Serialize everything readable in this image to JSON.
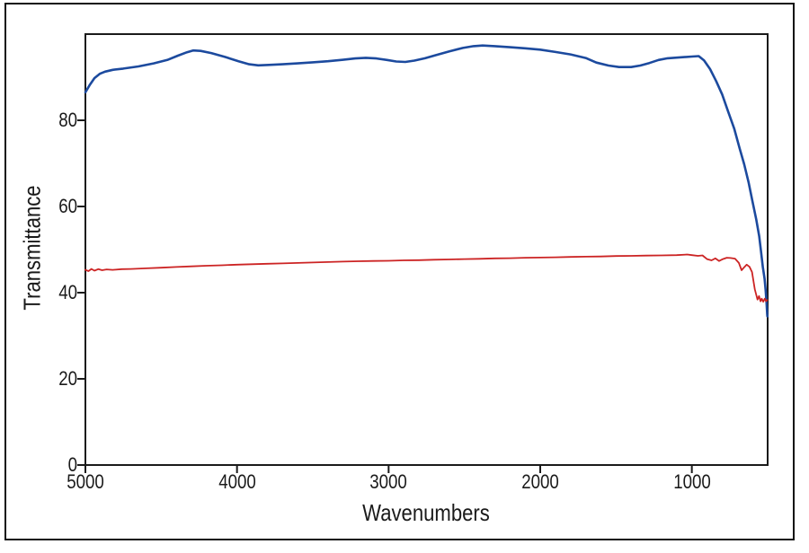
{
  "figure": {
    "background_color": "#ffffff",
    "border_color": "#101010",
    "axis_color": "#1a1a1a",
    "text_color": "#1a1a1a"
  },
  "chart_data": {
    "type": "line",
    "title": "",
    "xlabel": "Wavenumbers",
    "ylabel": "Transmittance",
    "grid": false,
    "legend": null,
    "x_axis": {
      "left": 5000,
      "right": 500,
      "reversed": true,
      "ticks": [
        5000,
        4000,
        3000,
        2000,
        1000
      ]
    },
    "y_axis": {
      "min": 0,
      "max": 100,
      "ticks": [
        0,
        20,
        40,
        60,
        80
      ]
    },
    "series": [
      {
        "name": "upper-spectrum-blue",
        "color": "#1c4a9e",
        "width": 2.6,
        "points": [
          [
            5000,
            86.5
          ],
          [
            4970,
            88.3
          ],
          [
            4940,
            89.8
          ],
          [
            4905,
            90.8
          ],
          [
            4870,
            91.3
          ],
          [
            4820,
            91.7
          ],
          [
            4750,
            92.0
          ],
          [
            4650,
            92.5
          ],
          [
            4550,
            93.2
          ],
          [
            4460,
            94.0
          ],
          [
            4390,
            95.0
          ],
          [
            4330,
            95.8
          ],
          [
            4290,
            96.2
          ],
          [
            4240,
            96.1
          ],
          [
            4170,
            95.6
          ],
          [
            4080,
            94.7
          ],
          [
            3990,
            93.7
          ],
          [
            3920,
            93.0
          ],
          [
            3860,
            92.75
          ],
          [
            3790,
            92.85
          ],
          [
            3700,
            93.0
          ],
          [
            3600,
            93.2
          ],
          [
            3500,
            93.45
          ],
          [
            3400,
            93.7
          ],
          [
            3300,
            94.05
          ],
          [
            3220,
            94.35
          ],
          [
            3150,
            94.5
          ],
          [
            3080,
            94.35
          ],
          [
            3010,
            94.0
          ],
          [
            2950,
            93.65
          ],
          [
            2890,
            93.55
          ],
          [
            2830,
            93.85
          ],
          [
            2760,
            94.4
          ],
          [
            2690,
            95.1
          ],
          [
            2600,
            96.0
          ],
          [
            2510,
            96.8
          ],
          [
            2440,
            97.2
          ],
          [
            2380,
            97.35
          ],
          [
            2300,
            97.2
          ],
          [
            2200,
            96.95
          ],
          [
            2100,
            96.7
          ],
          [
            2000,
            96.4
          ],
          [
            1900,
            95.85
          ],
          [
            1800,
            95.3
          ],
          [
            1700,
            94.45
          ],
          [
            1630,
            93.4
          ],
          [
            1550,
            92.7
          ],
          [
            1480,
            92.35
          ],
          [
            1400,
            92.35
          ],
          [
            1340,
            92.7
          ],
          [
            1280,
            93.3
          ],
          [
            1220,
            94.0
          ],
          [
            1160,
            94.4
          ],
          [
            1080,
            94.6
          ],
          [
            1000,
            94.8
          ],
          [
            955,
            94.9
          ],
          [
            920,
            93.9
          ],
          [
            880,
            91.9
          ],
          [
            840,
            89.1
          ],
          [
            800,
            86.0
          ],
          [
            760,
            82.0
          ],
          [
            720,
            78.0
          ],
          [
            685,
            73.5
          ],
          [
            655,
            69.8
          ],
          [
            625,
            65.5
          ],
          [
            600,
            61.2
          ],
          [
            575,
            57.0
          ],
          [
            556,
            53.1
          ],
          [
            544,
            49.6
          ],
          [
            532,
            46.0
          ],
          [
            520,
            43.2
          ],
          [
            513,
            40.5
          ],
          [
            507,
            37.5
          ],
          [
            503,
            35.0
          ],
          [
            502,
            34.5
          ]
        ]
      },
      {
        "name": "lower-spectrum-red",
        "color": "#cc2424",
        "width": 1.8,
        "points": [
          [
            5000,
            45.3
          ],
          [
            4980,
            45.0
          ],
          [
            4960,
            45.5
          ],
          [
            4940,
            45.1
          ],
          [
            4915,
            45.45
          ],
          [
            4890,
            45.2
          ],
          [
            4860,
            45.4
          ],
          [
            4820,
            45.3
          ],
          [
            4760,
            45.45
          ],
          [
            4700,
            45.5
          ],
          [
            4600,
            45.65
          ],
          [
            4500,
            45.8
          ],
          [
            4400,
            45.95
          ],
          [
            4300,
            46.1
          ],
          [
            4200,
            46.25
          ],
          [
            4100,
            46.35
          ],
          [
            4000,
            46.5
          ],
          [
            3900,
            46.6
          ],
          [
            3800,
            46.7
          ],
          [
            3700,
            46.8
          ],
          [
            3600,
            46.9
          ],
          [
            3500,
            47.0
          ],
          [
            3400,
            47.1
          ],
          [
            3300,
            47.2
          ],
          [
            3200,
            47.3
          ],
          [
            3100,
            47.35
          ],
          [
            3000,
            47.4
          ],
          [
            2900,
            47.5
          ],
          [
            2800,
            47.55
          ],
          [
            2700,
            47.65
          ],
          [
            2600,
            47.7
          ],
          [
            2500,
            47.8
          ],
          [
            2400,
            47.85
          ],
          [
            2300,
            47.95
          ],
          [
            2200,
            48.0
          ],
          [
            2100,
            48.1
          ],
          [
            2000,
            48.15
          ],
          [
            1900,
            48.2
          ],
          [
            1800,
            48.3
          ],
          [
            1700,
            48.35
          ],
          [
            1600,
            48.4
          ],
          [
            1500,
            48.5
          ],
          [
            1400,
            48.55
          ],
          [
            1300,
            48.6
          ],
          [
            1200,
            48.65
          ],
          [
            1100,
            48.7
          ],
          [
            1030,
            48.85
          ],
          [
            1000,
            48.7
          ],
          [
            960,
            48.55
          ],
          [
            930,
            48.65
          ],
          [
            900,
            47.8
          ],
          [
            870,
            47.5
          ],
          [
            845,
            47.95
          ],
          [
            820,
            47.35
          ],
          [
            795,
            47.8
          ],
          [
            770,
            48.1
          ],
          [
            745,
            48.05
          ],
          [
            715,
            47.9
          ],
          [
            690,
            46.9
          ],
          [
            672,
            45.2
          ],
          [
            655,
            45.9
          ],
          [
            638,
            46.5
          ],
          [
            620,
            46.0
          ],
          [
            603,
            44.8
          ],
          [
            585,
            40.8
          ],
          [
            567,
            38.4
          ],
          [
            557,
            39.2
          ],
          [
            547,
            38.0
          ],
          [
            539,
            38.6
          ],
          [
            529,
            37.9
          ],
          [
            519,
            38.6
          ],
          [
            510,
            38.0
          ],
          [
            503,
            38.3
          ]
        ]
      }
    ]
  }
}
